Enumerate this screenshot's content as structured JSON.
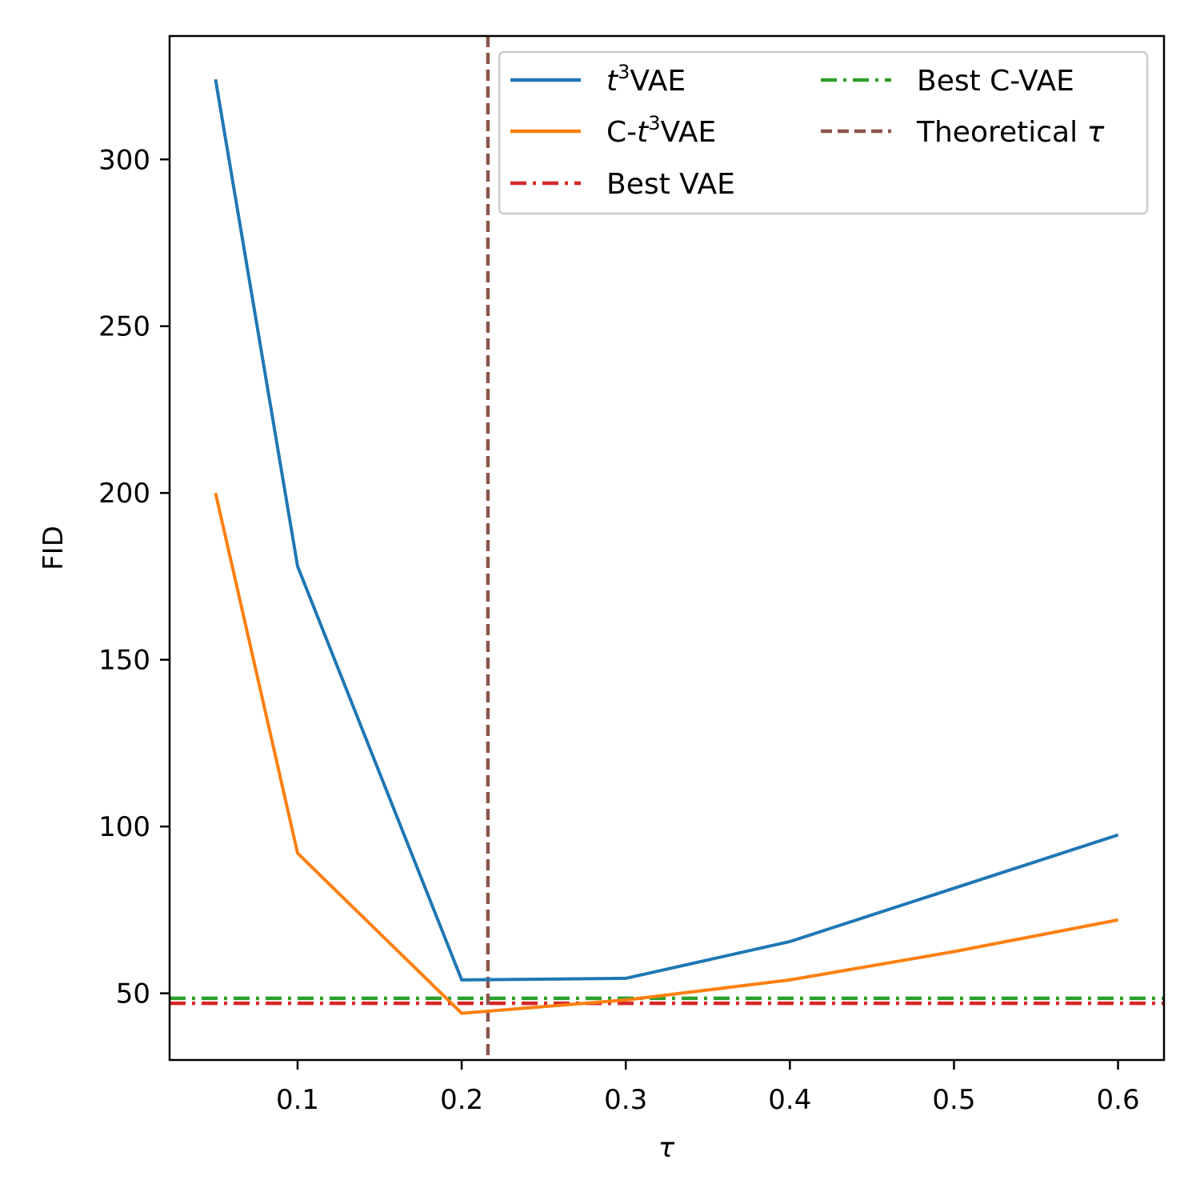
{
  "chart_data": {
    "type": "line",
    "title": "",
    "xlabel": "τ",
    "ylabel": "FID",
    "xlim": [
      0.022,
      0.628
    ],
    "ylim": [
      30,
      337
    ],
    "xticks": [
      0.1,
      0.2,
      0.3,
      0.4,
      0.5,
      0.6
    ],
    "xtick_labels": [
      "0.1",
      "0.2",
      "0.3",
      "0.4",
      "0.5",
      "0.6"
    ],
    "yticks": [
      50,
      100,
      150,
      200,
      250,
      300
    ],
    "ytick_labels": [
      "50",
      "100",
      "150",
      "200",
      "250",
      "300"
    ],
    "grid": false,
    "legend_position": "top-right",
    "series": [
      {
        "name": "t³VAE",
        "name_parts": {
          "italic": "t",
          "sup": "3",
          "rest": "VAE"
        },
        "color": "#1f77b4",
        "style": "solid",
        "x": [
          0.05,
          0.1,
          0.2,
          0.3,
          0.4,
          0.5,
          0.6
        ],
        "y": [
          324,
          178,
          54,
          54.5,
          65.5,
          81.5,
          97.5
        ]
      },
      {
        "name": "C-t³VAE",
        "name_parts": {
          "prefix": "C-",
          "italic": "t",
          "sup": "3",
          "rest": "VAE"
        },
        "color": "#ff7f0e",
        "style": "solid",
        "x": [
          0.05,
          0.1,
          0.2,
          0.3,
          0.4,
          0.5,
          0.6
        ],
        "y": [
          200,
          92,
          44,
          48,
          54,
          62.5,
          72
        ]
      }
    ],
    "reference_lines": [
      {
        "name": "Best VAE",
        "orientation": "horizontal",
        "value": 47,
        "color": "#d62728",
        "style": "dashdot"
      },
      {
        "name": "Best C-VAE",
        "orientation": "horizontal",
        "value": 48.5,
        "color": "#2ca02c",
        "style": "dashdot"
      },
      {
        "name": "Theoretical τ",
        "name_parts": {
          "text": "Theoretical ",
          "italic": "τ"
        },
        "orientation": "vertical",
        "value": 0.216,
        "color": "#8c564b",
        "style": "dashed"
      }
    ]
  }
}
